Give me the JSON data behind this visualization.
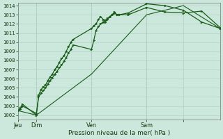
{
  "bg_color": "#cce8dc",
  "grid_color": "#aaccbb",
  "line_color": "#1a5c1a",
  "marker_color": "#1a5c1a",
  "axis_label_color": "#1a3310",
  "tick_label_color": "#1a3310",
  "ylabel_min": 1002,
  "ylabel_max": 1014,
  "xlabel": "Pression niveau de la mer( hPa )",
  "xtick_positions": [
    0,
    16,
    64,
    112,
    144
  ],
  "xtick_labels": [
    "Jeu",
    "Dim",
    "Ven",
    "Sam",
    ""
  ],
  "x_min": 0,
  "x_max": 176,
  "series1_x": [
    0,
    2,
    4,
    16,
    18,
    20,
    22,
    24,
    26,
    28,
    30,
    32,
    34,
    36,
    38,
    40,
    42,
    44,
    46,
    48,
    64,
    66,
    68,
    70,
    72,
    74,
    76,
    78,
    80,
    82,
    84,
    86,
    88,
    96,
    112,
    128,
    144,
    160,
    176
  ],
  "series1_y": [
    1002.5,
    1002.8,
    1003.2,
    1002.0,
    1004.2,
    1004.8,
    1005.1,
    1005.3,
    1005.8,
    1006.2,
    1006.5,
    1007.0,
    1007.3,
    1007.8,
    1008.2,
    1008.5,
    1009.0,
    1009.5,
    1010.0,
    1010.3,
    1011.5,
    1011.8,
    1012.0,
    1012.5,
    1012.8,
    1012.5,
    1012.2,
    1012.5,
    1012.8,
    1013.0,
    1013.3,
    1013.0,
    1013.0,
    1013.2,
    1014.2,
    1014.0,
    1013.5,
    1012.2,
    1011.5
  ],
  "series2_x": [
    0,
    2,
    4,
    16,
    18,
    20,
    22,
    24,
    26,
    28,
    30,
    32,
    34,
    36,
    38,
    40,
    42,
    44,
    46,
    48,
    64,
    66,
    68,
    70,
    72,
    74,
    76,
    78,
    80,
    82,
    84,
    86,
    88,
    96,
    112,
    128,
    144,
    160,
    176
  ],
  "series2_y": [
    1002.5,
    1002.7,
    1003.0,
    1002.2,
    1004.0,
    1004.4,
    1004.7,
    1005.0,
    1005.4,
    1005.8,
    1006.1,
    1006.5,
    1006.8,
    1007.2,
    1007.5,
    1007.9,
    1008.3,
    1008.8,
    1009.2,
    1009.7,
    1009.2,
    1010.2,
    1011.3,
    1011.7,
    1012.0,
    1012.2,
    1012.4,
    1012.6,
    1012.8,
    1013.0,
    1013.2,
    1013.0,
    1013.0,
    1013.0,
    1013.8,
    1013.3,
    1013.2,
    1013.4,
    1011.6
  ],
  "series3_x": [
    0,
    16,
    64,
    112,
    144,
    176
  ],
  "series3_y": [
    1002.5,
    1002.0,
    1006.5,
    1013.0,
    1014.0,
    1011.5
  ]
}
